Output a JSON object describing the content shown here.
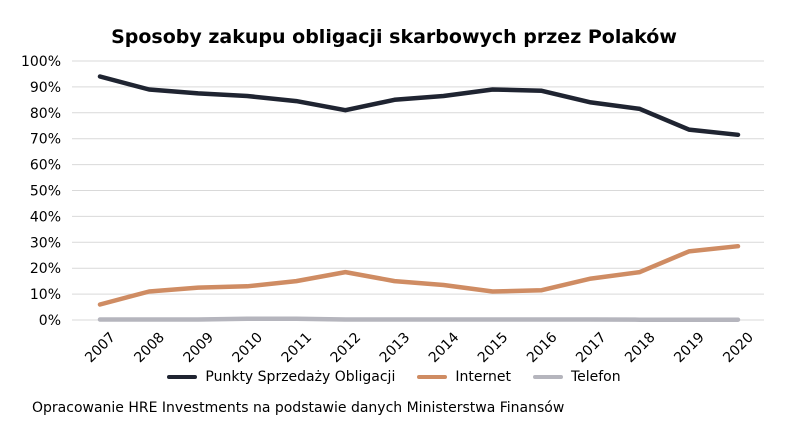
{
  "chart_data": {
    "type": "line",
    "title": "Sposoby zakupu obligacji skarbowych przez Polaków",
    "x": [
      "2007",
      "2008",
      "2009",
      "2010",
      "2011",
      "2012",
      "2013",
      "2014",
      "2015",
      "2016",
      "2017",
      "2018",
      "2019",
      "2020"
    ],
    "y_ticks": [
      "0%",
      "10%",
      "20%",
      "30%",
      "40%",
      "50%",
      "60%",
      "70%",
      "80%",
      "90%",
      "100%"
    ],
    "ylim": [
      0,
      100
    ],
    "grid": true,
    "legend_position": "bottom",
    "series": [
      {
        "name": "Punkty Sprzedaży Obligacji",
        "color": "#1f2431",
        "values": [
          94,
          89,
          87.5,
          86.5,
          84.5,
          81,
          85,
          86.5,
          89,
          88.5,
          84,
          81.5,
          73.5,
          71.5
        ]
      },
      {
        "name": "Internet",
        "color": "#cf8c63",
        "values": [
          6,
          11,
          12.5,
          13,
          15,
          18.5,
          15,
          13.5,
          11,
          11.5,
          16,
          18.5,
          26.5,
          28.5
        ]
      },
      {
        "name": "Telefon",
        "color": "#b5b5bd",
        "values": [
          0.2,
          0.2,
          0.2,
          0.5,
          0.5,
          0.2,
          0.2,
          0.2,
          0.2,
          0.2,
          0.2,
          0.1,
          0.1,
          0.1
        ]
      }
    ]
  },
  "source": "Opracowanie HRE Investments na podstawie danych Ministerstwa Finansów"
}
